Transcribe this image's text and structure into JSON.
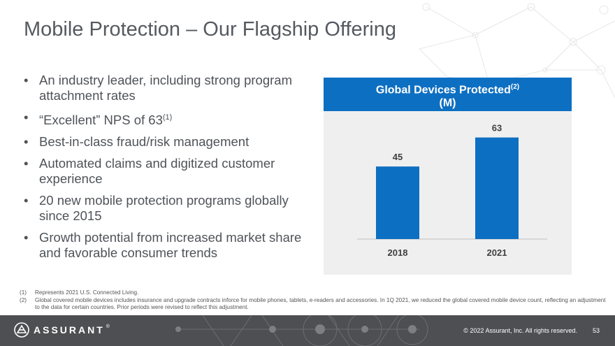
{
  "slide": {
    "title": "Mobile Protection – Our Flagship Offering"
  },
  "bullets": [
    {
      "text": "An industry leader, including strong program attachment rates"
    },
    {
      "text": "“Excellent” NPS of 63",
      "sup": "(1)"
    },
    {
      "text": "Best-in-class fraud/risk management"
    },
    {
      "text": "Automated claims and digitized customer experience"
    },
    {
      "text": "20 new mobile protection programs globally since 2015"
    },
    {
      "text": "Growth potential from increased market share and favorable consumer trends"
    }
  ],
  "bullet_glyph": "•",
  "chart_data": {
    "type": "bar",
    "title": "Global Devices Protected",
    "title_sup": "(2)",
    "subtitle": "(M)",
    "categories": [
      "2018",
      "2021"
    ],
    "values": [
      45,
      63
    ],
    "ylim": [
      0,
      75
    ],
    "xlabel": "",
    "ylabel": "",
    "grid": false,
    "colors": {
      "bar": "#0d6fc2",
      "header_bg": "#0d6fc2",
      "panel_bg": "#efefef"
    }
  },
  "footnotes": [
    {
      "num": "(1)",
      "text": "Represents 2021 U.S. Connected Living."
    },
    {
      "num": "(2)",
      "text": "Global covered mobile devices includes insurance and upgrade contracts inforce for mobile phones, tablets, e-readers and accessories. In 1Q 2021, we reduced the global covered mobile device count, reflecting an adjustment to the data for certain countries.  Prior periods were revised to reflect this adjustment."
    }
  ],
  "footer": {
    "logo_text": "ASSURANT",
    "logo_reg": "®",
    "logo_icon": "assurant-logo-icon",
    "copyright": "© 2022 Assurant, Inc. All rights reserved.",
    "page_number": "53"
  },
  "colors": {
    "accent": "#0d6fc2",
    "footer_bg": "#4d4f52"
  }
}
